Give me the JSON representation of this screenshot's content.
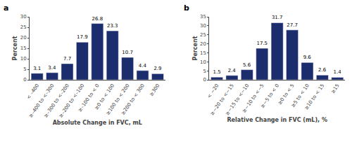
{
  "chart_data": [
    {
      "type": "bar",
      "title": "a",
      "categories": [
        "< –400",
        "≥–400 to <–300",
        "≥–300 to <–200",
        "≥–200 to <–100",
        "≥–100 to < 0",
        "≥0 to < 100",
        "≥100 to < 200",
        "≥200 to < 300",
        "≥300"
      ],
      "values": [
        3.1,
        3.4,
        7.7,
        17.9,
        26.8,
        23.3,
        10.7,
        4.4,
        2.9
      ],
      "color": "#1C2D6E",
      "xlabel": "Absolute Change in FVC, mL",
      "ylabel": "Percent",
      "ylim": [
        0,
        30
      ],
      "yticks": [
        0,
        5,
        10,
        15,
        20,
        25,
        30
      ],
      "grid": false,
      "data_labels": true
    },
    {
      "type": "bar",
      "title": "b",
      "categories": [
        "< −20",
        "≥−20 to <−15",
        "≥−15 to <−10",
        "≥−10 to <−5",
        "≥−5 to < 0",
        "≥0 to < 5",
        "≥5 to < 10",
        "≥10 to < 15",
        "≥15"
      ],
      "values": [
        1.5,
        2.4,
        5.6,
        17.5,
        31.7,
        27.7,
        9.6,
        2.6,
        1.4
      ],
      "color": "#1C2D6E",
      "xlabel": "Relative Change in FVC (mL), %",
      "ylabel": "Percent",
      "ylim": [
        0,
        35
      ],
      "yticks": [
        0,
        5,
        10,
        15,
        20,
        25,
        30,
        35
      ],
      "grid": false,
      "data_labels": true
    }
  ]
}
